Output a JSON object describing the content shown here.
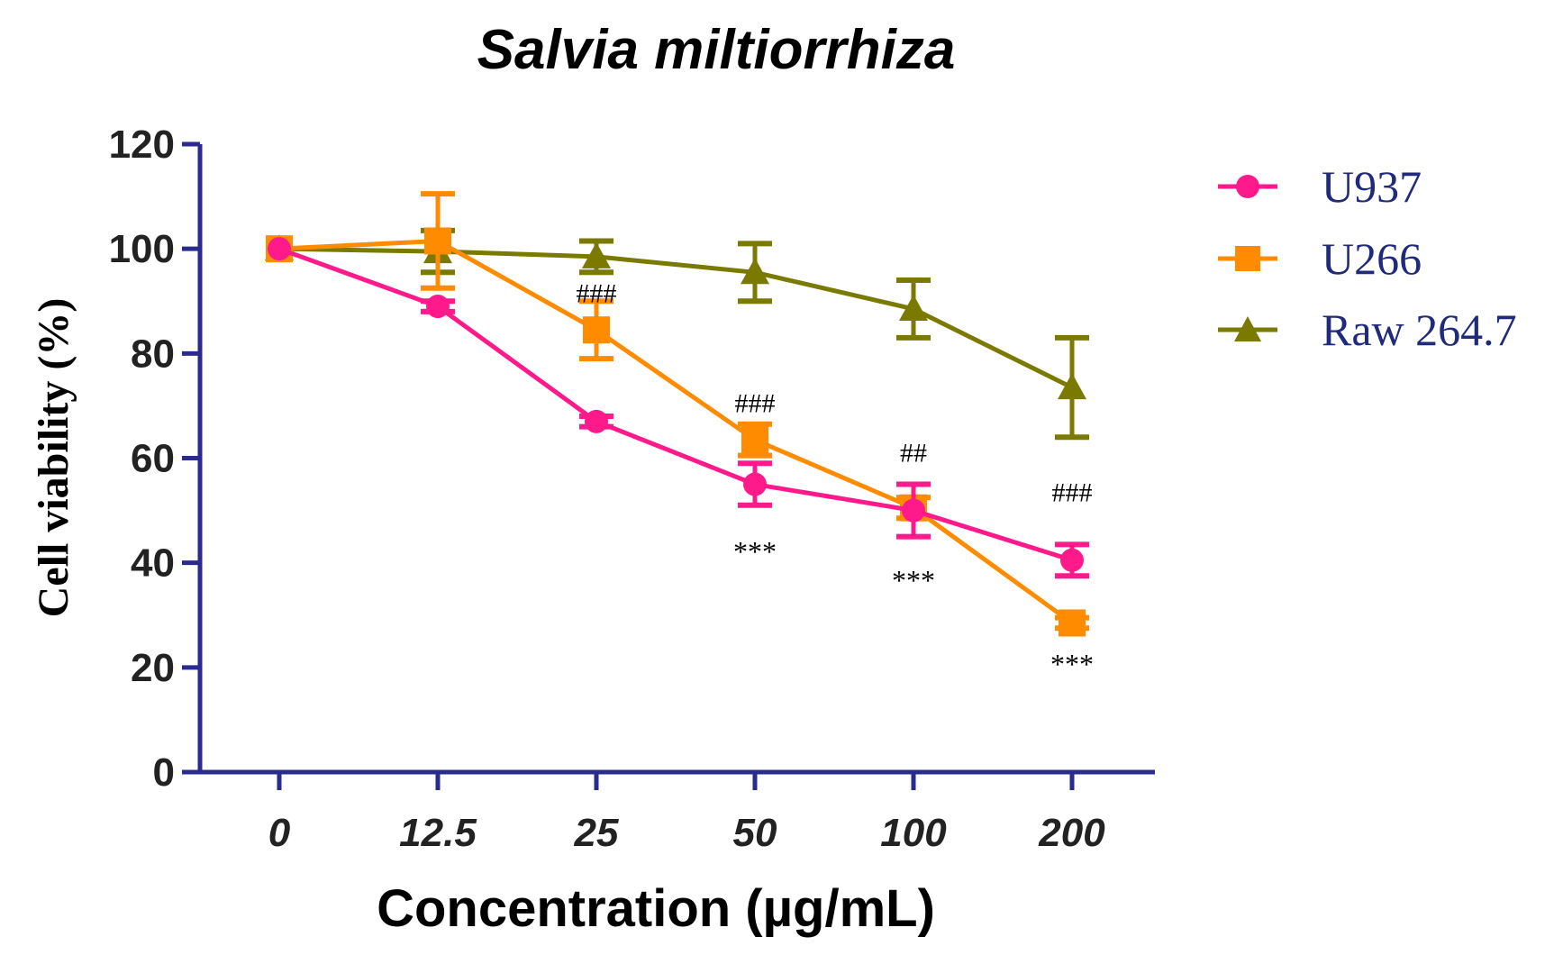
{
  "chart_data": {
    "type": "line",
    "title": "Salvia miltiorrhiza",
    "xlabel": "Concentration (µg/mL)",
    "ylabel": "Cell viability (%)",
    "categories": [
      "0",
      "12.5",
      "25",
      "50",
      "100",
      "200"
    ],
    "ylim": [
      0,
      120
    ],
    "yticks": [
      0,
      20,
      40,
      60,
      80,
      100,
      120
    ],
    "ytick_labels": [
      "0",
      "20",
      "40",
      "60",
      "80",
      "100",
      "120"
    ],
    "grid": false,
    "legend_position": "right",
    "series": [
      {
        "name": "Raw 264.7",
        "color": "#7a7a00",
        "marker": "triangle",
        "values": [
          100,
          99.5,
          98.5,
          95.5,
          88.5,
          73.5
        ],
        "errors": [
          0,
          4,
          3,
          5.5,
          5.5,
          9.5
        ]
      },
      {
        "name": "U266",
        "color": "#ff8c00",
        "marker": "square",
        "values": [
          100,
          101.5,
          84.5,
          63.5,
          50.5,
          28.5
        ],
        "errors": [
          0,
          9,
          5.5,
          3,
          2,
          1
        ]
      },
      {
        "name": "U937",
        "color": "#ff1a8c",
        "marker": "circle",
        "values": [
          100,
          89,
          67,
          55,
          50,
          40.5
        ],
        "errors": [
          0,
          1,
          1,
          4,
          5,
          3
        ]
      }
    ],
    "legend_order": [
      "U937",
      "U266",
      "Raw 264.7"
    ],
    "annotations": [
      {
        "text": "###",
        "category": "25",
        "value": 91.5,
        "kind": "hash"
      },
      {
        "text": "###",
        "category": "50",
        "value": 70.5,
        "kind": "hash"
      },
      {
        "text": "##",
        "category": "100",
        "value": 61,
        "kind": "hash"
      },
      {
        "text": "###",
        "category": "200",
        "value": 53.5,
        "kind": "hash"
      },
      {
        "text": "***",
        "category": "50",
        "value": 43,
        "kind": "star"
      },
      {
        "text": "***",
        "category": "100",
        "value": 37.5,
        "kind": "star"
      },
      {
        "text": "***",
        "category": "200",
        "value": 21.5,
        "kind": "star"
      }
    ]
  },
  "colors": {
    "axis": "#2b2b8f"
  }
}
